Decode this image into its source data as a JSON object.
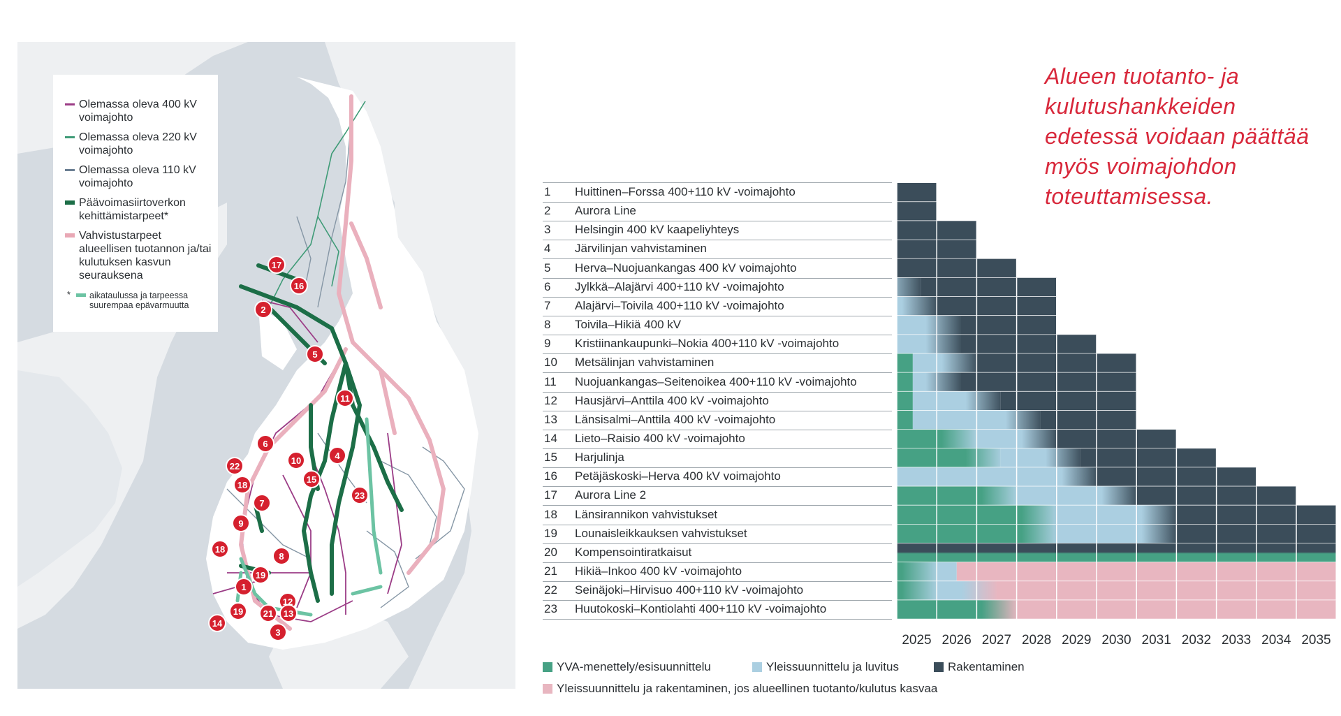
{
  "note": "Alueen tuotanto- ja kulutushankkeiden edetessä voidaan päättää myös voimajohdon toteuttamisessa.",
  "map": {
    "legend": [
      {
        "label": "Olemassa oleva 400 kV voimajohto",
        "color": "#9b3c86"
      },
      {
        "label": "Olemassa oleva 220 kV voimajohto",
        "color": "#3f9b77"
      },
      {
        "label": "Olemassa oleva 110 kV voimajohto",
        "color": "#6b7f93"
      },
      {
        "label": "Päävoimasiirtoverkon kehittämistarpeet*",
        "color": "#1c6e47"
      },
      {
        "label": "Vahvistustarpeet alueellisen tuotannon ja/tai kulutuksen kasvun seurauksena",
        "color": "#e9a8b5"
      }
    ],
    "footnote_star": "*",
    "footnote": "aikataulussa ja tarpeessa suurempaa epävarmuutta",
    "footnote_color": "#6cc3a3",
    "markers": [
      "1",
      "2",
      "3",
      "4",
      "5",
      "6",
      "7",
      "8",
      "9",
      "10",
      "11",
      "12",
      "13",
      "14",
      "15",
      "16",
      "17",
      "18",
      "18",
      "19",
      "19",
      "21",
      "22",
      "23"
    ],
    "marker_color": "#d5202e"
  },
  "chart_data": {
    "type": "table",
    "years": [
      "2025",
      "2026",
      "2027",
      "2028",
      "2029",
      "2030",
      "2031",
      "2032",
      "2033",
      "2034",
      "2035"
    ],
    "phase_colors": {
      "yva": "#46a184",
      "yleis": "#abcfe1",
      "rakent": "#3b4d5a",
      "pink": "#e8b6c0"
    },
    "legend": [
      {
        "key": "yva",
        "label": "YVA-menettely/esisuunnittelu"
      },
      {
        "key": "yleis",
        "label": "Yleissuunnittelu ja luvitus"
      },
      {
        "key": "rakent",
        "label": "Rakentaminen"
      },
      {
        "key": "pink",
        "label": "Yleissuunnittelu ja rakentaminen, jos alueellinen tuotanto/kulutus kasvaa"
      }
    ],
    "rows": [
      {
        "num": "1",
        "name": "Huittinen–Forssa 400+110 kV -voimajohto",
        "segments": [
          [
            "rakent",
            2025,
            2026
          ]
        ]
      },
      {
        "num": "2",
        "name": "Aurora Line",
        "segments": [
          [
            "rakent",
            2025,
            2026
          ]
        ]
      },
      {
        "num": "3",
        "name": "Helsingin 400 kV kaapeliyhteys",
        "segments": [
          [
            "rakent",
            2025,
            2027
          ]
        ]
      },
      {
        "num": "4",
        "name": "Järvilinjan vahvistaminen",
        "segments": [
          [
            "rakent",
            2025,
            2027
          ]
        ]
      },
      {
        "num": "5",
        "name": "Herva–Nuojuankangas 400 kV voimajohto",
        "segments": [
          [
            "rakent",
            2025,
            2028
          ]
        ]
      },
      {
        "num": "6",
        "name": "Jylkkä–Alajärvi 400+110 kV -voimajohto",
        "segments": [
          [
            "yleis",
            2025,
            2025.6
          ],
          [
            "rakent",
            2025.6,
            2029
          ]
        ]
      },
      {
        "num": "7",
        "name": "Alajärvi–Toivila 400+110 kV -voimajohto",
        "segments": [
          [
            "yleis",
            2025,
            2026
          ],
          [
            "rakent",
            2026,
            2029
          ]
        ]
      },
      {
        "num": "8",
        "name": "Toivila–Hikiä 400 kV",
        "segments": [
          [
            "yleis",
            2025,
            2026.6
          ],
          [
            "rakent",
            2026.6,
            2029
          ]
        ]
      },
      {
        "num": "9",
        "name": "Kristiinankaupunki–Nokia 400+110 kV -voimajohto",
        "segments": [
          [
            "yleis",
            2025,
            2026.6
          ],
          [
            "rakent",
            2026.6,
            2030
          ]
        ]
      },
      {
        "num": "10",
        "name": "Metsälinjan vahvistaminen",
        "segments": [
          [
            "yva",
            2025,
            2025.4
          ],
          [
            "yleis",
            2025.4,
            2027
          ],
          [
            "rakent",
            2027,
            2031
          ]
        ]
      },
      {
        "num": "11",
        "name": "Nuojuankangas–Seitenoikea 400+110 kV -voimajohto",
        "segments": [
          [
            "yva",
            2025,
            2025.4
          ],
          [
            "yleis",
            2025.4,
            2026.6
          ],
          [
            "rakent",
            2026.6,
            2031
          ]
        ]
      },
      {
        "num": "12",
        "name": "Hausjärvi–Anttila 400 kV -voimajohto",
        "segments": [
          [
            "yva",
            2025,
            2025.4
          ],
          [
            "yleis",
            2025.4,
            2027.6
          ],
          [
            "rakent",
            2027.6,
            2031
          ]
        ]
      },
      {
        "num": "13",
        "name": "Länsisalmi–Anttila 400 kV -voimajohto",
        "segments": [
          [
            "yva",
            2025,
            2025.4
          ],
          [
            "yleis",
            2025.4,
            2028.6
          ],
          [
            "rakent",
            2028.6,
            2031
          ]
        ]
      },
      {
        "num": "14",
        "name": "Lieto–Raisio 400 kV -voimajohto",
        "segments": [
          [
            "yva",
            2025,
            2027
          ],
          [
            "yleis",
            2027,
            2029
          ],
          [
            "rakent",
            2029,
            2032
          ]
        ]
      },
      {
        "num": "15",
        "name": "Harjulinja",
        "segments": [
          [
            "yva",
            2025,
            2027.6
          ],
          [
            "yleis",
            2027.6,
            2029.6
          ],
          [
            "rakent",
            2029.6,
            2033
          ]
        ]
      },
      {
        "num": "16",
        "name": "Petäjäskoski–Herva 400 kV voimajohto",
        "segments": [
          [
            "yleis",
            2025,
            2030
          ],
          [
            "rakent",
            2030,
            2034
          ]
        ]
      },
      {
        "num": "17",
        "name": "Aurora Line 2",
        "segments": [
          [
            "yva",
            2025,
            2028
          ],
          [
            "yleis",
            2028,
            2031
          ],
          [
            "rakent",
            2031,
            2035
          ]
        ]
      },
      {
        "num": "18",
        "name": "Länsirannikon vahvistukset",
        "segments": [
          [
            "yva",
            2025,
            2029
          ],
          [
            "yleis",
            2029,
            2032
          ],
          [
            "rakent",
            2032,
            2036
          ]
        ]
      },
      {
        "num": "19",
        "name": "Lounaisleikkauksen vahvistukset",
        "segments": [
          [
            "yva",
            2025,
            2029
          ],
          [
            "yleis",
            2029,
            2032
          ],
          [
            "rakent",
            2032,
            2036
          ]
        ]
      },
      {
        "num": "20",
        "name": "Kompensointiratkaisut",
        "segments": [
          [
            "stripe",
            2025,
            2036
          ]
        ]
      },
      {
        "num": "21",
        "name": "Hikiä–Inkoo 400 kV -voimajohto",
        "segments": [
          [
            "yva",
            2025,
            2026
          ],
          [
            "yleis",
            2026,
            2026.5
          ],
          [
            "pink",
            2026.5,
            2036
          ]
        ]
      },
      {
        "num": "22",
        "name": "Seinäjoki–Hirvisuo 400+110 kV -voimajohto",
        "segments": [
          [
            "yva",
            2025,
            2026
          ],
          [
            "yleis",
            2026,
            2027.5
          ],
          [
            "pink",
            2027.5,
            2036
          ]
        ]
      },
      {
        "num": "23",
        "name": "Huutokoski–Kontiolahti 400+110 kV -voimajohto",
        "segments": [
          [
            "yva",
            2025,
            2028
          ],
          [
            "pink",
            2028,
            2036
          ]
        ]
      }
    ]
  }
}
